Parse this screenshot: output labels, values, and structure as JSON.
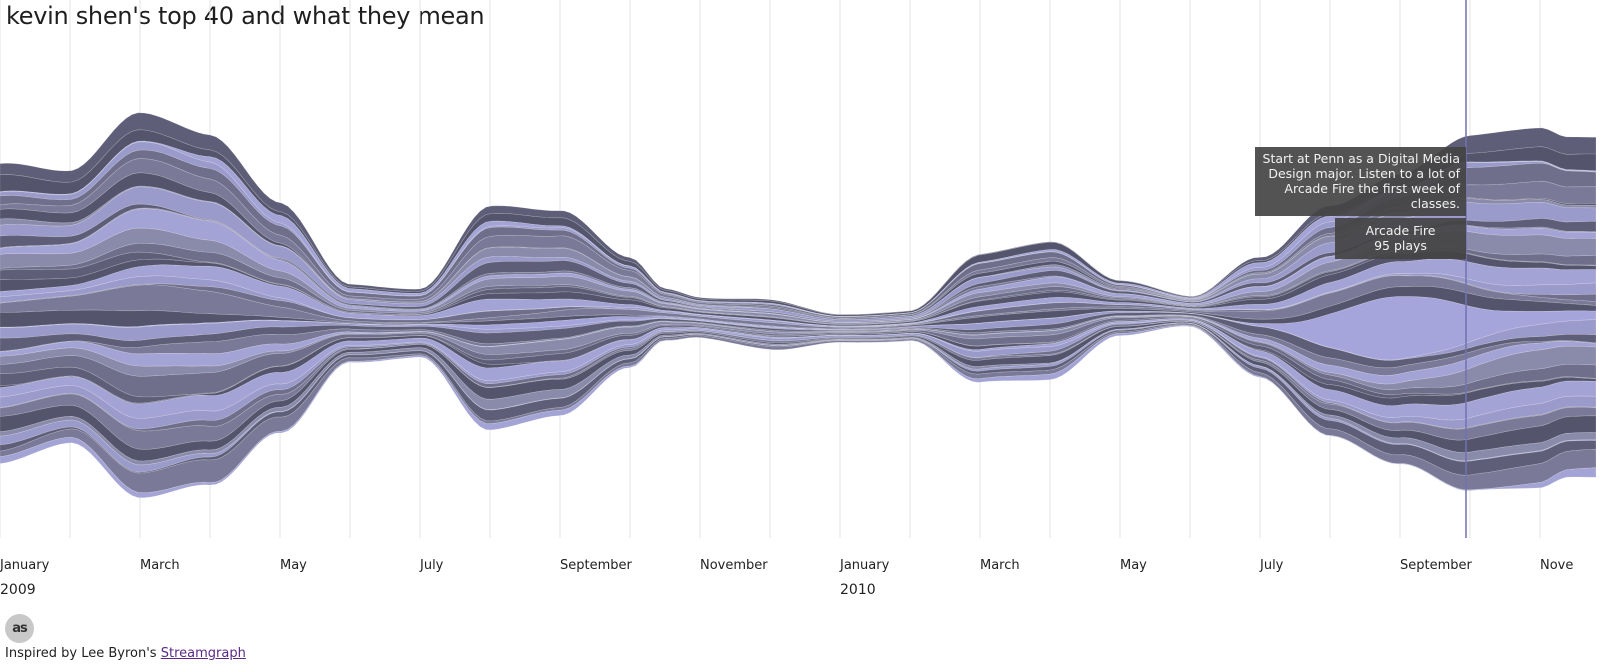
{
  "title": "kevin shen's top 40 and what they mean",
  "chart_data": {
    "type": "area",
    "style": "streamgraph",
    "layer_count": 40,
    "colors": [
      "#5e5e78",
      "#8a8aaa",
      "#7a7a98",
      "#9a9acb",
      "#54546c",
      "#6f6f8c",
      "#a3a3d6"
    ],
    "x_axis": {
      "start": "2009-01",
      "end": "2010-11",
      "month_ticks": [
        "January",
        "March",
        "May",
        "July",
        "September",
        "November",
        "January",
        "March",
        "May",
        "July",
        "September",
        "Nove"
      ],
      "year_ticks": [
        "2009",
        "2010"
      ]
    },
    "grid": "vertical-monthly",
    "cursor_month": "2010-09",
    "thickness_profile": [
      [
        0.0,
        300
      ],
      [
        1.0,
        272
      ],
      [
        2.0,
        385
      ],
      [
        3.0,
        350
      ],
      [
        4.0,
        230
      ],
      [
        5.0,
        78
      ],
      [
        6.0,
        68
      ],
      [
        7.0,
        224
      ],
      [
        8.0,
        205
      ],
      [
        9.0,
        110
      ],
      [
        9.5,
        52
      ],
      [
        10.0,
        40
      ],
      [
        11.0,
        50
      ],
      [
        12.0,
        28
      ],
      [
        13.0,
        30
      ],
      [
        14.0,
        128
      ],
      [
        15.0,
        138
      ],
      [
        16.0,
        55
      ],
      [
        17.0,
        30
      ],
      [
        18.0,
        120
      ],
      [
        19.0,
        230
      ],
      [
        20.0,
        290
      ],
      [
        21.0,
        355
      ],
      [
        22.0,
        360
      ],
      [
        22.4,
        340
      ]
    ]
  },
  "event_tooltip": {
    "text": "Start at Penn as a Digital Media Design major. Listen to a lot of Arcade Fire the first week of classes."
  },
  "artist_tooltip": {
    "artist": "Arcade Fire",
    "plays": "95 plays"
  },
  "footer": {
    "prefix": "Inspired by Lee Byron's ",
    "link_text": "Streamgraph"
  },
  "lastfm_icon_label": "as"
}
